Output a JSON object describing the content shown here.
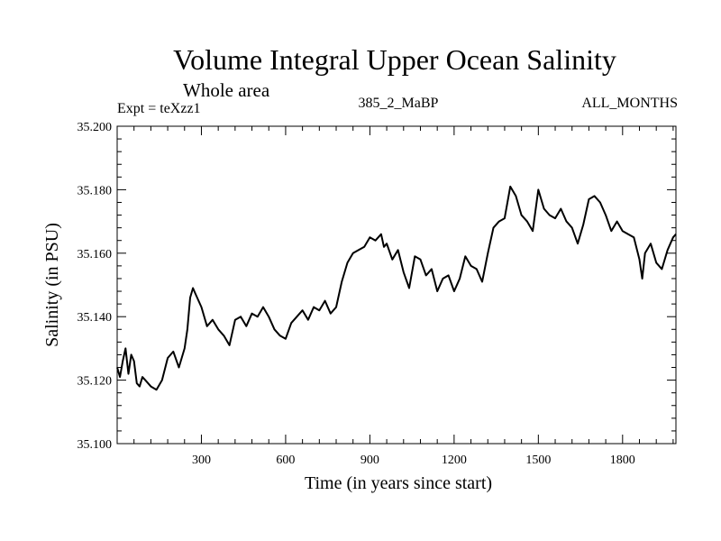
{
  "chart_data": {
    "type": "line",
    "title": "Volume Integral Upper Ocean Salinity",
    "subtitle": "Whole area",
    "expt_label": "Expt = teXzz1",
    "run_label": "385_2_MaBP",
    "months_label": "ALL_MONTHS",
    "xlabel": "Time (in years since start)",
    "ylabel": "Salinity (in PSU)",
    "xlim": [
      0,
      1990
    ],
    "ylim": [
      35.1,
      35.2
    ],
    "xticks": [
      300,
      600,
      900,
      1200,
      1500,
      1800
    ],
    "xtick_labels": [
      "300",
      "600",
      "900",
      "1200",
      "1500",
      "1800"
    ],
    "yticks": [
      35.1,
      35.12,
      35.14,
      35.16,
      35.18,
      35.2
    ],
    "ytick_labels": [
      "35.100",
      "35.120",
      "35.140",
      "35.160",
      "35.180",
      "35.200"
    ],
    "series": [
      {
        "name": "Salinity",
        "color": "#000000",
        "x": [
          0,
          10,
          20,
          30,
          40,
          50,
          60,
          70,
          80,
          90,
          100,
          120,
          140,
          160,
          180,
          200,
          220,
          240,
          250,
          260,
          270,
          280,
          300,
          320,
          340,
          360,
          380,
          400,
          420,
          440,
          460,
          480,
          500,
          520,
          540,
          560,
          580,
          600,
          620,
          640,
          660,
          680,
          700,
          720,
          740,
          760,
          780,
          800,
          820,
          840,
          860,
          880,
          900,
          920,
          940,
          950,
          960,
          980,
          1000,
          1020,
          1040,
          1060,
          1080,
          1100,
          1120,
          1140,
          1160,
          1180,
          1200,
          1220,
          1240,
          1260,
          1280,
          1300,
          1320,
          1340,
          1360,
          1380,
          1400,
          1420,
          1440,
          1460,
          1480,
          1500,
          1520,
          1540,
          1560,
          1580,
          1600,
          1620,
          1640,
          1660,
          1680,
          1700,
          1720,
          1740,
          1760,
          1780,
          1800,
          1820,
          1840,
          1860,
          1870,
          1880,
          1900,
          1920,
          1940,
          1960,
          1980,
          1990
        ],
        "y": [
          35.124,
          35.121,
          35.126,
          35.13,
          35.122,
          35.128,
          35.126,
          35.119,
          35.118,
          35.121,
          35.12,
          35.118,
          35.117,
          35.12,
          35.127,
          35.129,
          35.124,
          35.13,
          35.136,
          35.146,
          35.149,
          35.147,
          35.143,
          35.137,
          35.139,
          35.136,
          35.134,
          35.131,
          35.139,
          35.14,
          35.137,
          35.141,
          35.14,
          35.143,
          35.14,
          35.136,
          35.134,
          35.133,
          35.138,
          35.14,
          35.142,
          35.139,
          35.143,
          35.142,
          35.145,
          35.141,
          35.143,
          35.151,
          35.157,
          35.16,
          35.161,
          35.162,
          35.165,
          35.164,
          35.166,
          35.162,
          35.163,
          35.158,
          35.161,
          35.154,
          35.149,
          35.159,
          35.158,
          35.153,
          35.155,
          35.148,
          35.152,
          35.153,
          35.148,
          35.152,
          35.159,
          35.156,
          35.155,
          35.151,
          35.16,
          35.168,
          35.17,
          35.171,
          35.181,
          35.178,
          35.172,
          35.17,
          35.167,
          35.18,
          35.174,
          35.172,
          35.171,
          35.174,
          35.17,
          35.168,
          35.163,
          35.169,
          35.177,
          35.178,
          35.176,
          35.172,
          35.167,
          35.17,
          35.167,
          35.166,
          35.165,
          35.158,
          35.152,
          35.16,
          35.163,
          35.157,
          35.155,
          35.161,
          35.165,
          35.166
        ]
      }
    ]
  }
}
